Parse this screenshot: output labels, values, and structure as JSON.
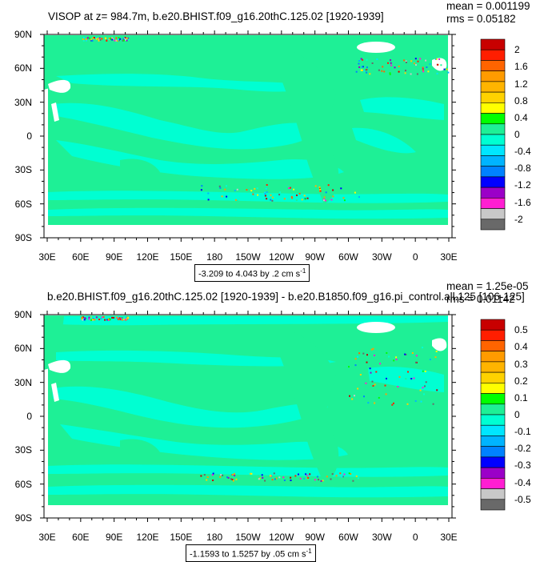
{
  "colors": {
    "scale": [
      "#696969",
      "#c8c8c8",
      "#ff1ed2",
      "#9b00c8",
      "#0000ff",
      "#0082ff",
      "#00b4ff",
      "#00e6ff",
      "#00ffd2",
      "#1ef096",
      "#00ff00",
      "#ffff00",
      "#ffd200",
      "#ffb400",
      "#ff9b00",
      "#ff6400",
      "#ff1e00",
      "#c80000"
    ],
    "ocean_base": "#1ef096",
    "ocean_neg": "#00ffd2",
    "missing": "#ffffff"
  },
  "panels": [
    {
      "title": "VISOP at z= 984.7m, b.e20.BHIST.f09_g16.20thC.125.02 [1920-1939]",
      "mean": "mean = 0.001199",
      "rms": "rms = 0.05182",
      "range_prefix": "-3.209 to 4.043 by .2 cm s",
      "range_exp": "-1",
      "colorbar_labels": [
        "2",
        "1.6",
        "1.2",
        "0.8",
        "0.4",
        "0",
        "-0.4",
        "-0.8",
        "-1.2",
        "-1.6",
        "-2"
      ]
    },
    {
      "title": "b.e20.BHIST.f09_g16.20thC.125.02 [1920-1939] - b.e20.B1850.f09_g16.pi_control.all.125 [106-125]",
      "mean": "mean = 1.25e-05",
      "rms": "rms = 0.01142",
      "range_prefix": "-1.1593 to 1.5257 by .05 cm s",
      "range_exp": "-1",
      "colorbar_labels": [
        "0.5",
        "0.4",
        "0.3",
        "0.2",
        "0.1",
        "0",
        "-0.1",
        "-0.2",
        "-0.3",
        "-0.4",
        "-0.5"
      ]
    }
  ],
  "axes": {
    "lat_labels": [
      "90N",
      "60N",
      "30N",
      "0",
      "30S",
      "60S",
      "90S"
    ],
    "lon_labels": [
      "30E",
      "60E",
      "90E",
      "120E",
      "150E",
      "180",
      "150W",
      "120W",
      "90W",
      "60W",
      "30W",
      "0",
      "30E"
    ]
  }
}
